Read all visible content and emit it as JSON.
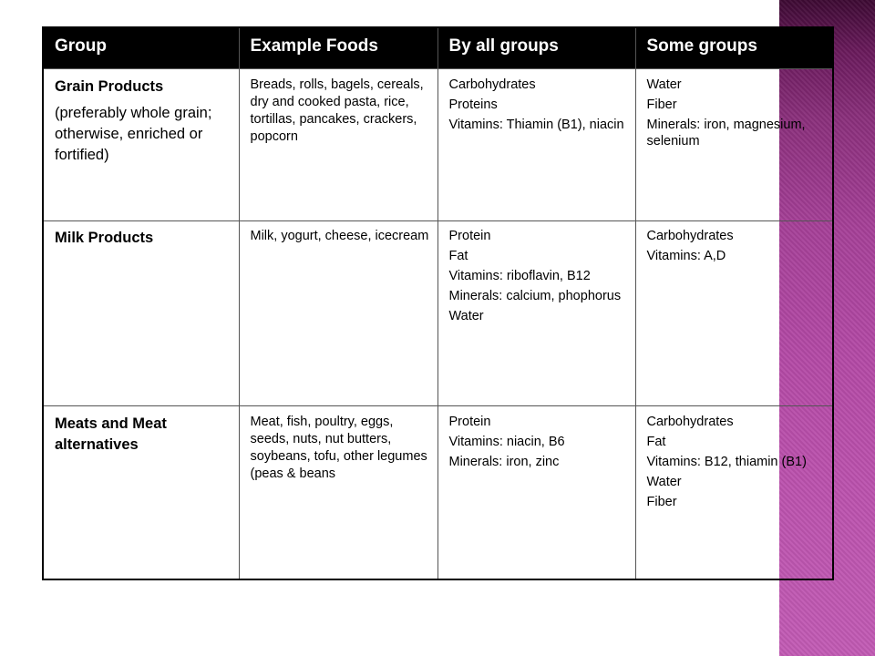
{
  "table": {
    "headers": [
      "Group",
      "Example Foods",
      "By all groups",
      "Some groups"
    ],
    "rows": [
      {
        "group": "Grain Products",
        "group_note": "(preferably whole grain; otherwise, enriched or fortified)",
        "foods": "Breads, rolls, bagels, cereals, dry and cooked pasta, rice, tortillas, pancakes, crackers, popcorn",
        "all_groups": [
          "Carbohydrates",
          "Proteins",
          "Vitamins: Thiamin (B1), niacin"
        ],
        "some_groups": [
          "Water",
          "Fiber",
          "Minerals: iron, magnesium, selenium"
        ]
      },
      {
        "group": "Milk Products",
        "foods": "Milk, yogurt, cheese, icecream",
        "all_groups": [
          "Protein",
          "Fat",
          "Vitamins: riboflavin, B12",
          "Minerals: calcium, phophorus",
          "Water"
        ],
        "some_groups": [
          "Carbohydrates",
          "Vitamins: A,D"
        ]
      },
      {
        "group": "Meats and Meat alternatives",
        "foods": "Meat, fish, poultry, eggs, seeds, nuts, nut butters, soybeans, tofu, other legumes (peas & beans",
        "all_groups": [
          "Protein",
          "Vitamins: niacin, B6",
          "Minerals: iron, zinc"
        ],
        "some_groups": [
          "Carbohydrates",
          "Fat",
          "Vitamins: B12, thiamin (B1)",
          "Water",
          "Fiber"
        ]
      }
    ]
  },
  "colors": {
    "header_bg": "#000000",
    "header_text": "#ffffff",
    "side_bar": "#b44aa6"
  }
}
